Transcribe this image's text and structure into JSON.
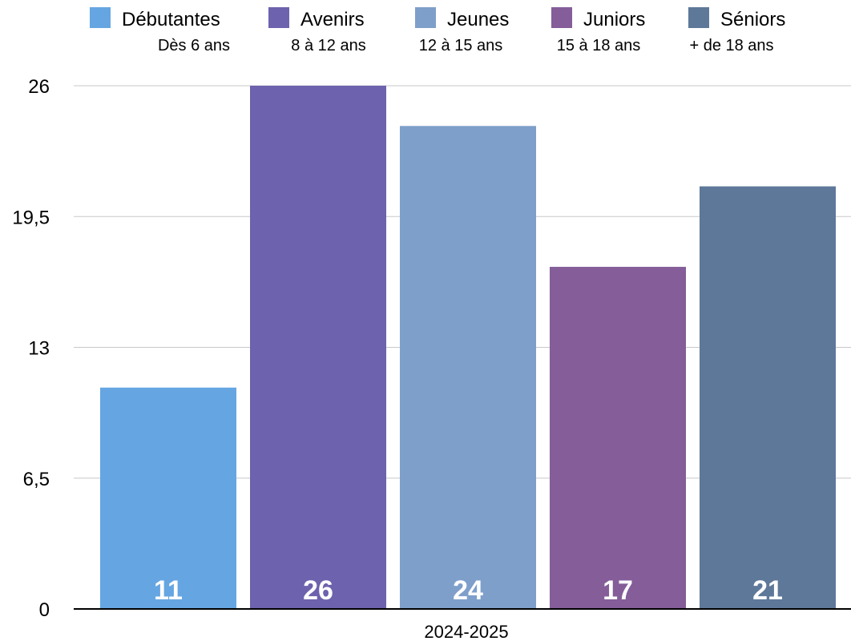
{
  "chart_data": {
    "type": "bar",
    "categories": [
      "2024-2025"
    ],
    "series": [
      {
        "name": "Débutantes",
        "subtitle": "Dès 6 ans",
        "values": [
          11
        ],
        "color": "#65a6e2"
      },
      {
        "name": "Avenirs",
        "subtitle": "8 à 12 ans",
        "values": [
          26
        ],
        "color": "#6d62ad"
      },
      {
        "name": "Jeunes",
        "subtitle": "12 à 15 ans",
        "values": [
          24
        ],
        "color": "#7e9fca"
      },
      {
        "name": "Juniors",
        "subtitle": "15 à 18 ans",
        "values": [
          17
        ],
        "color": "#845d99"
      },
      {
        "name": "Séniors",
        "subtitle": "+ de 18 ans",
        "values": [
          21
        ],
        "color": "#5e7899"
      }
    ],
    "value_labels": [
      "11",
      "26",
      "24",
      "17",
      "21"
    ],
    "y_ticks": [
      "0",
      "6,5",
      "13",
      "19,5",
      "26"
    ],
    "ylim": [
      0,
      26
    ],
    "grid": true,
    "legend_position": "top",
    "title": "",
    "xlabel": "",
    "ylabel": ""
  }
}
